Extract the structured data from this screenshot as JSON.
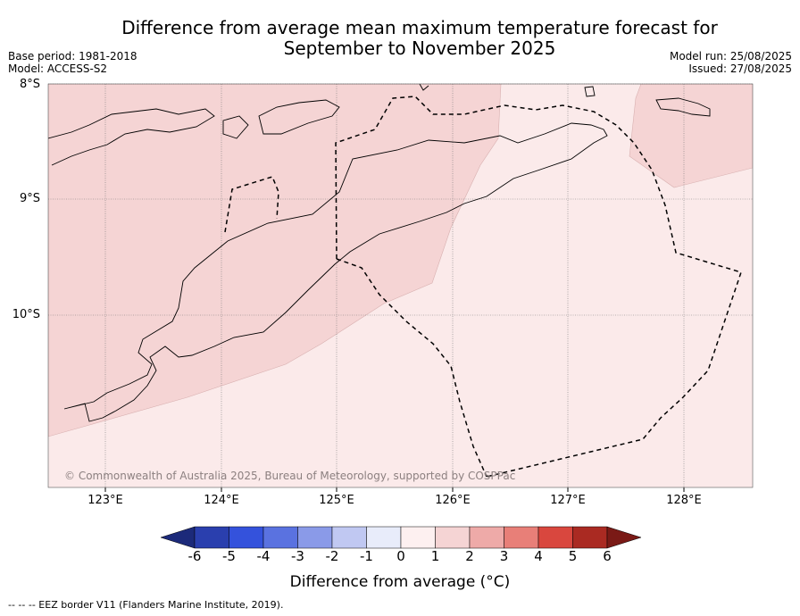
{
  "title": "Difference from average mean maximum temperature forecast for September to November 2025",
  "title_line1": "Difference from average mean maximum temperature forecast for",
  "title_line2": "September to November 2025",
  "meta_left": {
    "base_period": "Base period: 1981-2018",
    "model": "Model: ACCESS-S2"
  },
  "meta_right": {
    "model_run": "Model run: 25/08/2025",
    "issued": "Issued: 27/08/2025"
  },
  "map": {
    "lat_labels": [
      "8°S",
      "9°S",
      "10°S"
    ],
    "lon_labels": [
      "123°E",
      "124°E",
      "125°E",
      "126°E",
      "127°E",
      "128°E"
    ],
    "fill_colors": {
      "one_to_two": "#f5d4d4",
      "zero_to_one": "#fbeaea"
    },
    "credit": "© Commonwealth of Australia 2025, Bureau of Meteorology, supported by COSPPac"
  },
  "colorbar": {
    "ticks": [
      "-6",
      "-5",
      "-4",
      "-3",
      "-2",
      "-1",
      "0",
      "1",
      "2",
      "3",
      "4",
      "5",
      "6"
    ],
    "colors": [
      "#1c2a7a",
      "#2a44b4",
      "#3452dc",
      "#5a72e0",
      "#8a9ae8",
      "#c0c8f2",
      "#e8ecfa",
      "#fdf0f0",
      "#f5d4d4",
      "#eeaaa8",
      "#e87f78",
      "#d9473e",
      "#aa2a22",
      "#7a1a16"
    ],
    "title": "Difference from average (°C)"
  },
  "footnote": "--  --  -- EEZ border V11 (Flanders Marine Institute, 2019)."
}
